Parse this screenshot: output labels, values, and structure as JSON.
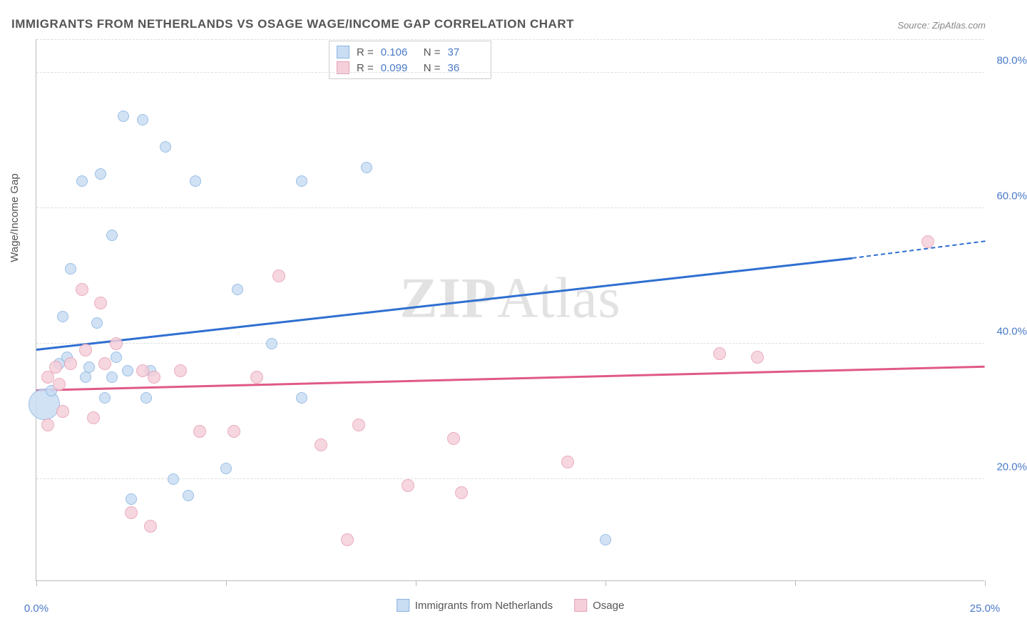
{
  "title": "IMMIGRANTS FROM NETHERLANDS VS OSAGE WAGE/INCOME GAP CORRELATION CHART",
  "source": "Source: ZipAtlas.com",
  "ylabel": "Wage/Income Gap",
  "watermark_a": "ZIP",
  "watermark_b": "Atlas",
  "chart": {
    "type": "scatter",
    "xlim": [
      0,
      25
    ],
    "ylim": [
      5,
      85
    ],
    "x_ticks": [
      0,
      5,
      10,
      15,
      20,
      25
    ],
    "x_tick_labels": [
      "0.0%",
      "",
      "",
      "",
      "",
      "25.0%"
    ],
    "y_gridlines": [
      20,
      40,
      60,
      80
    ],
    "y_tick_labels": [
      "20.0%",
      "40.0%",
      "60.0%",
      "80.0%"
    ],
    "grid_color": "#dddddd",
    "axis_color": "#bbbbbb",
    "background_color": "#ffffff",
    "label_color": "#4a7ac9"
  },
  "series": [
    {
      "name": "Immigrants from Netherlands",
      "fill": "#c9ddf3",
      "stroke": "#8ab4e3",
      "trend_color": "#2f6fd1",
      "R": "0.106",
      "N": "37",
      "trend": {
        "x1": 0,
        "y1": 39,
        "x2": 21.5,
        "y2": 52.5,
        "dash_x2": 25,
        "dash_y2": 55
      },
      "points": [
        {
          "x": 0.2,
          "y": 31,
          "r": 22
        },
        {
          "x": 0.4,
          "y": 33,
          "r": 8
        },
        {
          "x": 0.6,
          "y": 37,
          "r": 8
        },
        {
          "x": 0.7,
          "y": 44,
          "r": 8
        },
        {
          "x": 0.8,
          "y": 38,
          "r": 8
        },
        {
          "x": 0.9,
          "y": 51,
          "r": 8
        },
        {
          "x": 1.2,
          "y": 64,
          "r": 8
        },
        {
          "x": 1.3,
          "y": 35,
          "r": 8
        },
        {
          "x": 1.4,
          "y": 36.5,
          "r": 8
        },
        {
          "x": 1.6,
          "y": 43,
          "r": 8
        },
        {
          "x": 1.7,
          "y": 65,
          "r": 8
        },
        {
          "x": 1.8,
          "y": 32,
          "r": 8
        },
        {
          "x": 2.0,
          "y": 35,
          "r": 8
        },
        {
          "x": 2.0,
          "y": 56,
          "r": 8
        },
        {
          "x": 2.1,
          "y": 38,
          "r": 8
        },
        {
          "x": 2.3,
          "y": 73.5,
          "r": 8
        },
        {
          "x": 2.4,
          "y": 36,
          "r": 8
        },
        {
          "x": 2.5,
          "y": 17,
          "r": 8
        },
        {
          "x": 2.8,
          "y": 73,
          "r": 8
        },
        {
          "x": 2.9,
          "y": 32,
          "r": 8
        },
        {
          "x": 3.0,
          "y": 36,
          "r": 8
        },
        {
          "x": 3.4,
          "y": 69,
          "r": 8
        },
        {
          "x": 3.6,
          "y": 20,
          "r": 8
        },
        {
          "x": 4.0,
          "y": 17.5,
          "r": 8
        },
        {
          "x": 4.2,
          "y": 64,
          "r": 8
        },
        {
          "x": 5.0,
          "y": 21.5,
          "r": 8
        },
        {
          "x": 5.3,
          "y": 48,
          "r": 8
        },
        {
          "x": 6.2,
          "y": 40,
          "r": 8
        },
        {
          "x": 7.0,
          "y": 64,
          "r": 8
        },
        {
          "x": 7.0,
          "y": 32,
          "r": 8
        },
        {
          "x": 8.7,
          "y": 66,
          "r": 8
        },
        {
          "x": 15.0,
          "y": 11,
          "r": 8
        }
      ]
    },
    {
      "name": "Osage",
      "fill": "#f5d0da",
      "stroke": "#e8a1b6",
      "trend_color": "#e05a85",
      "R": "0.099",
      "N": "36",
      "trend": {
        "x1": 0,
        "y1": 33,
        "x2": 25,
        "y2": 36.5
      },
      "points": [
        {
          "x": 0.3,
          "y": 28,
          "r": 9
        },
        {
          "x": 0.3,
          "y": 35,
          "r": 9
        },
        {
          "x": 0.5,
          "y": 36.5,
          "r": 9
        },
        {
          "x": 0.6,
          "y": 34,
          "r": 9
        },
        {
          "x": 0.7,
          "y": 30,
          "r": 9
        },
        {
          "x": 0.9,
          "y": 37,
          "r": 9
        },
        {
          "x": 1.2,
          "y": 48,
          "r": 9
        },
        {
          "x": 1.3,
          "y": 39,
          "r": 9
        },
        {
          "x": 1.5,
          "y": 29,
          "r": 9
        },
        {
          "x": 1.7,
          "y": 46,
          "r": 9
        },
        {
          "x": 1.8,
          "y": 37,
          "r": 9
        },
        {
          "x": 2.1,
          "y": 40,
          "r": 9
        },
        {
          "x": 2.5,
          "y": 15,
          "r": 9
        },
        {
          "x": 2.8,
          "y": 36,
          "r": 9
        },
        {
          "x": 3.0,
          "y": 13,
          "r": 9
        },
        {
          "x": 3.1,
          "y": 35,
          "r": 9
        },
        {
          "x": 3.8,
          "y": 36,
          "r": 9
        },
        {
          "x": 4.3,
          "y": 27,
          "r": 9
        },
        {
          "x": 5.2,
          "y": 27,
          "r": 9
        },
        {
          "x": 5.8,
          "y": 35,
          "r": 9
        },
        {
          "x": 6.4,
          "y": 50,
          "r": 9
        },
        {
          "x": 7.5,
          "y": 25,
          "r": 9
        },
        {
          "x": 8.2,
          "y": 11,
          "r": 9
        },
        {
          "x": 8.5,
          "y": 28,
          "r": 9
        },
        {
          "x": 9.8,
          "y": 19,
          "r": 9
        },
        {
          "x": 11.0,
          "y": 26,
          "r": 9
        },
        {
          "x": 11.2,
          "y": 18,
          "r": 9
        },
        {
          "x": 14.0,
          "y": 22.5,
          "r": 9
        },
        {
          "x": 18.0,
          "y": 38.5,
          "r": 9
        },
        {
          "x": 19.0,
          "y": 38,
          "r": 9
        },
        {
          "x": 23.5,
          "y": 55,
          "r": 9
        }
      ]
    }
  ],
  "legend": {
    "series1_label": "Immigrants from Netherlands",
    "series2_label": "Osage"
  },
  "stats_labels": {
    "r": "R  = ",
    "n": "N  = "
  }
}
